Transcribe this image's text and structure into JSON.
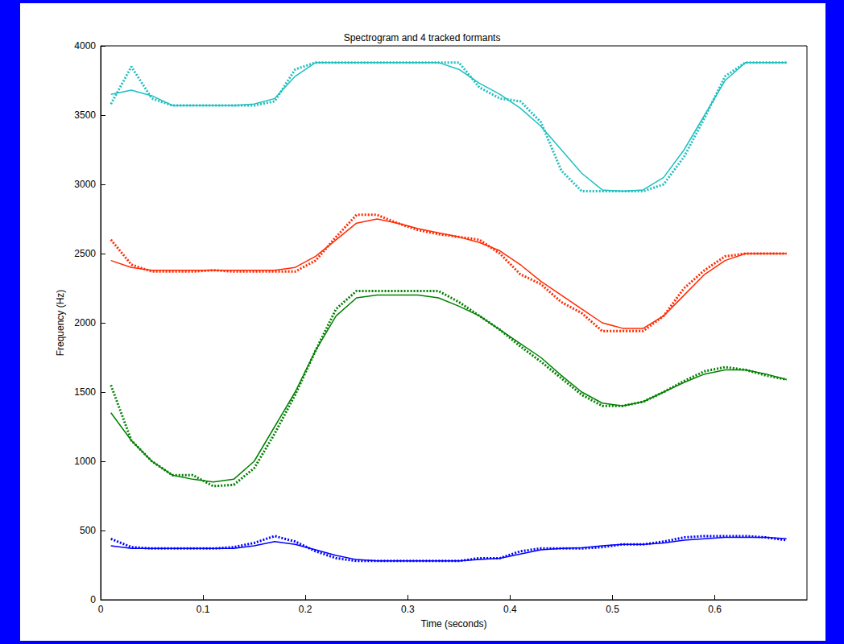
{
  "chart_data": {
    "type": "line",
    "title": "Spectrogram and 4 tracked formants",
    "x_label": "Time (seconds)",
    "y_label": "Frequency (Hz)",
    "x": [
      0.01,
      0.03,
      0.05,
      0.07,
      0.09,
      0.11,
      0.13,
      0.15,
      0.17,
      0.19,
      0.21,
      0.23,
      0.25,
      0.27,
      0.29,
      0.31,
      0.33,
      0.35,
      0.37,
      0.39,
      0.41,
      0.43,
      0.45,
      0.47,
      0.49,
      0.51,
      0.53,
      0.55,
      0.57,
      0.59,
      0.61,
      0.63,
      0.65,
      0.67
    ],
    "xlim": [
      0,
      0.69
    ],
    "xticks": [
      0,
      0.1,
      0.2,
      0.3,
      0.4,
      0.5,
      0.6
    ],
    "ylim": [
      0,
      4000
    ],
    "yticks": [
      0,
      500,
      1000,
      1500,
      2000,
      2500,
      3000,
      3500,
      4000
    ],
    "grid": false,
    "series": [
      {
        "color": "#1fbfbf",
        "line_style": "dotted",
        "values": [
          3580,
          3850,
          3620,
          3570,
          3570,
          3570,
          3570,
          3570,
          3600,
          3830,
          3880,
          3880,
          3880,
          3880,
          3880,
          3880,
          3880,
          3880,
          3700,
          3620,
          3600,
          3450,
          3100,
          2950,
          2950,
          2950,
          2950,
          3000,
          3200,
          3480,
          3780,
          3880,
          3880,
          3880
        ]
      },
      {
        "color": "#1fbfbf",
        "line_style": "solid",
        "values": [
          3650,
          3680,
          3640,
          3570,
          3570,
          3570,
          3570,
          3580,
          3620,
          3780,
          3880,
          3880,
          3880,
          3880,
          3880,
          3880,
          3880,
          3830,
          3730,
          3650,
          3550,
          3420,
          3250,
          3080,
          2960,
          2950,
          2960,
          3050,
          3250,
          3500,
          3750,
          3880,
          3880,
          3880
        ]
      },
      {
        "color": "#ff2a00",
        "line_style": "dotted",
        "values": [
          2600,
          2420,
          2370,
          2370,
          2370,
          2380,
          2370,
          2370,
          2370,
          2370,
          2450,
          2620,
          2780,
          2780,
          2720,
          2670,
          2640,
          2620,
          2600,
          2500,
          2350,
          2280,
          2150,
          2070,
          1940,
          1940,
          1940,
          2050,
          2250,
          2380,
          2480,
          2500,
          2500,
          2500
        ]
      },
      {
        "color": "#ff2a00",
        "line_style": "solid",
        "values": [
          2450,
          2400,
          2380,
          2380,
          2380,
          2380,
          2380,
          2380,
          2380,
          2400,
          2480,
          2600,
          2720,
          2750,
          2720,
          2680,
          2650,
          2620,
          2580,
          2520,
          2420,
          2300,
          2200,
          2100,
          2000,
          1960,
          1960,
          2050,
          2200,
          2350,
          2450,
          2500,
          2500,
          2500
        ]
      },
      {
        "color": "#008000",
        "line_style": "dotted",
        "values": [
          1550,
          1150,
          1000,
          900,
          900,
          820,
          830,
          950,
          1200,
          1480,
          1800,
          2100,
          2230,
          2230,
          2230,
          2230,
          2230,
          2150,
          2050,
          1950,
          1830,
          1720,
          1600,
          1480,
          1400,
          1400,
          1430,
          1500,
          1580,
          1650,
          1680,
          1660,
          1620,
          1590
        ]
      },
      {
        "color": "#008000",
        "line_style": "solid",
        "values": [
          1350,
          1150,
          1000,
          900,
          870,
          850,
          870,
          1000,
          1250,
          1500,
          1800,
          2050,
          2180,
          2200,
          2200,
          2200,
          2180,
          2120,
          2050,
          1950,
          1850,
          1750,
          1620,
          1500,
          1420,
          1400,
          1430,
          1500,
          1570,
          1630,
          1660,
          1660,
          1630,
          1590
        ]
      },
      {
        "color": "#0000ff",
        "line_style": "dotted",
        "values": [
          440,
          380,
          370,
          370,
          370,
          370,
          380,
          410,
          460,
          420,
          350,
          300,
          280,
          280,
          280,
          280,
          280,
          280,
          300,
          300,
          350,
          370,
          370,
          370,
          380,
          400,
          400,
          420,
          450,
          460,
          460,
          460,
          450,
          430
        ]
      },
      {
        "color": "#0000ff",
        "line_style": "solid",
        "values": [
          390,
          370,
          370,
          370,
          370,
          370,
          370,
          390,
          420,
          400,
          360,
          320,
          290,
          280,
          280,
          280,
          280,
          280,
          290,
          300,
          330,
          360,
          370,
          375,
          390,
          400,
          400,
          410,
          430,
          440,
          450,
          450,
          450,
          440
        ]
      }
    ]
  }
}
